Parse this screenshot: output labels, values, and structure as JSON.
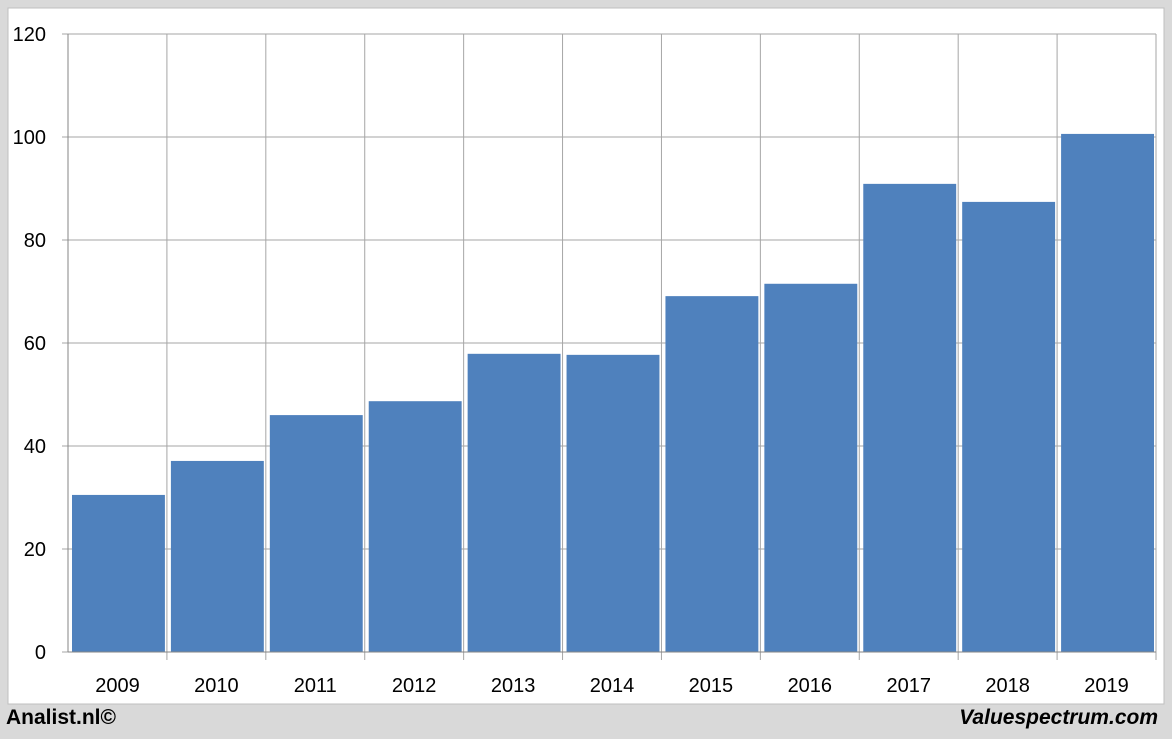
{
  "chart_data": {
    "type": "bar",
    "categories": [
      "2009",
      "2010",
      "2011",
      "2012",
      "2013",
      "2014",
      "2015",
      "2016",
      "2017",
      "2018",
      "2019"
    ],
    "values": [
      30.5,
      37.1,
      46.0,
      48.7,
      57.9,
      57.7,
      69.1,
      71.5,
      90.9,
      87.4,
      100.6
    ],
    "color": "#4f81bd",
    "ylim": [
      0,
      120
    ],
    "yticks": [
      0,
      20,
      40,
      60,
      80,
      100,
      120
    ],
    "grid": true,
    "source": "Analist.nl©",
    "credit": "Valuespectrum.com"
  }
}
